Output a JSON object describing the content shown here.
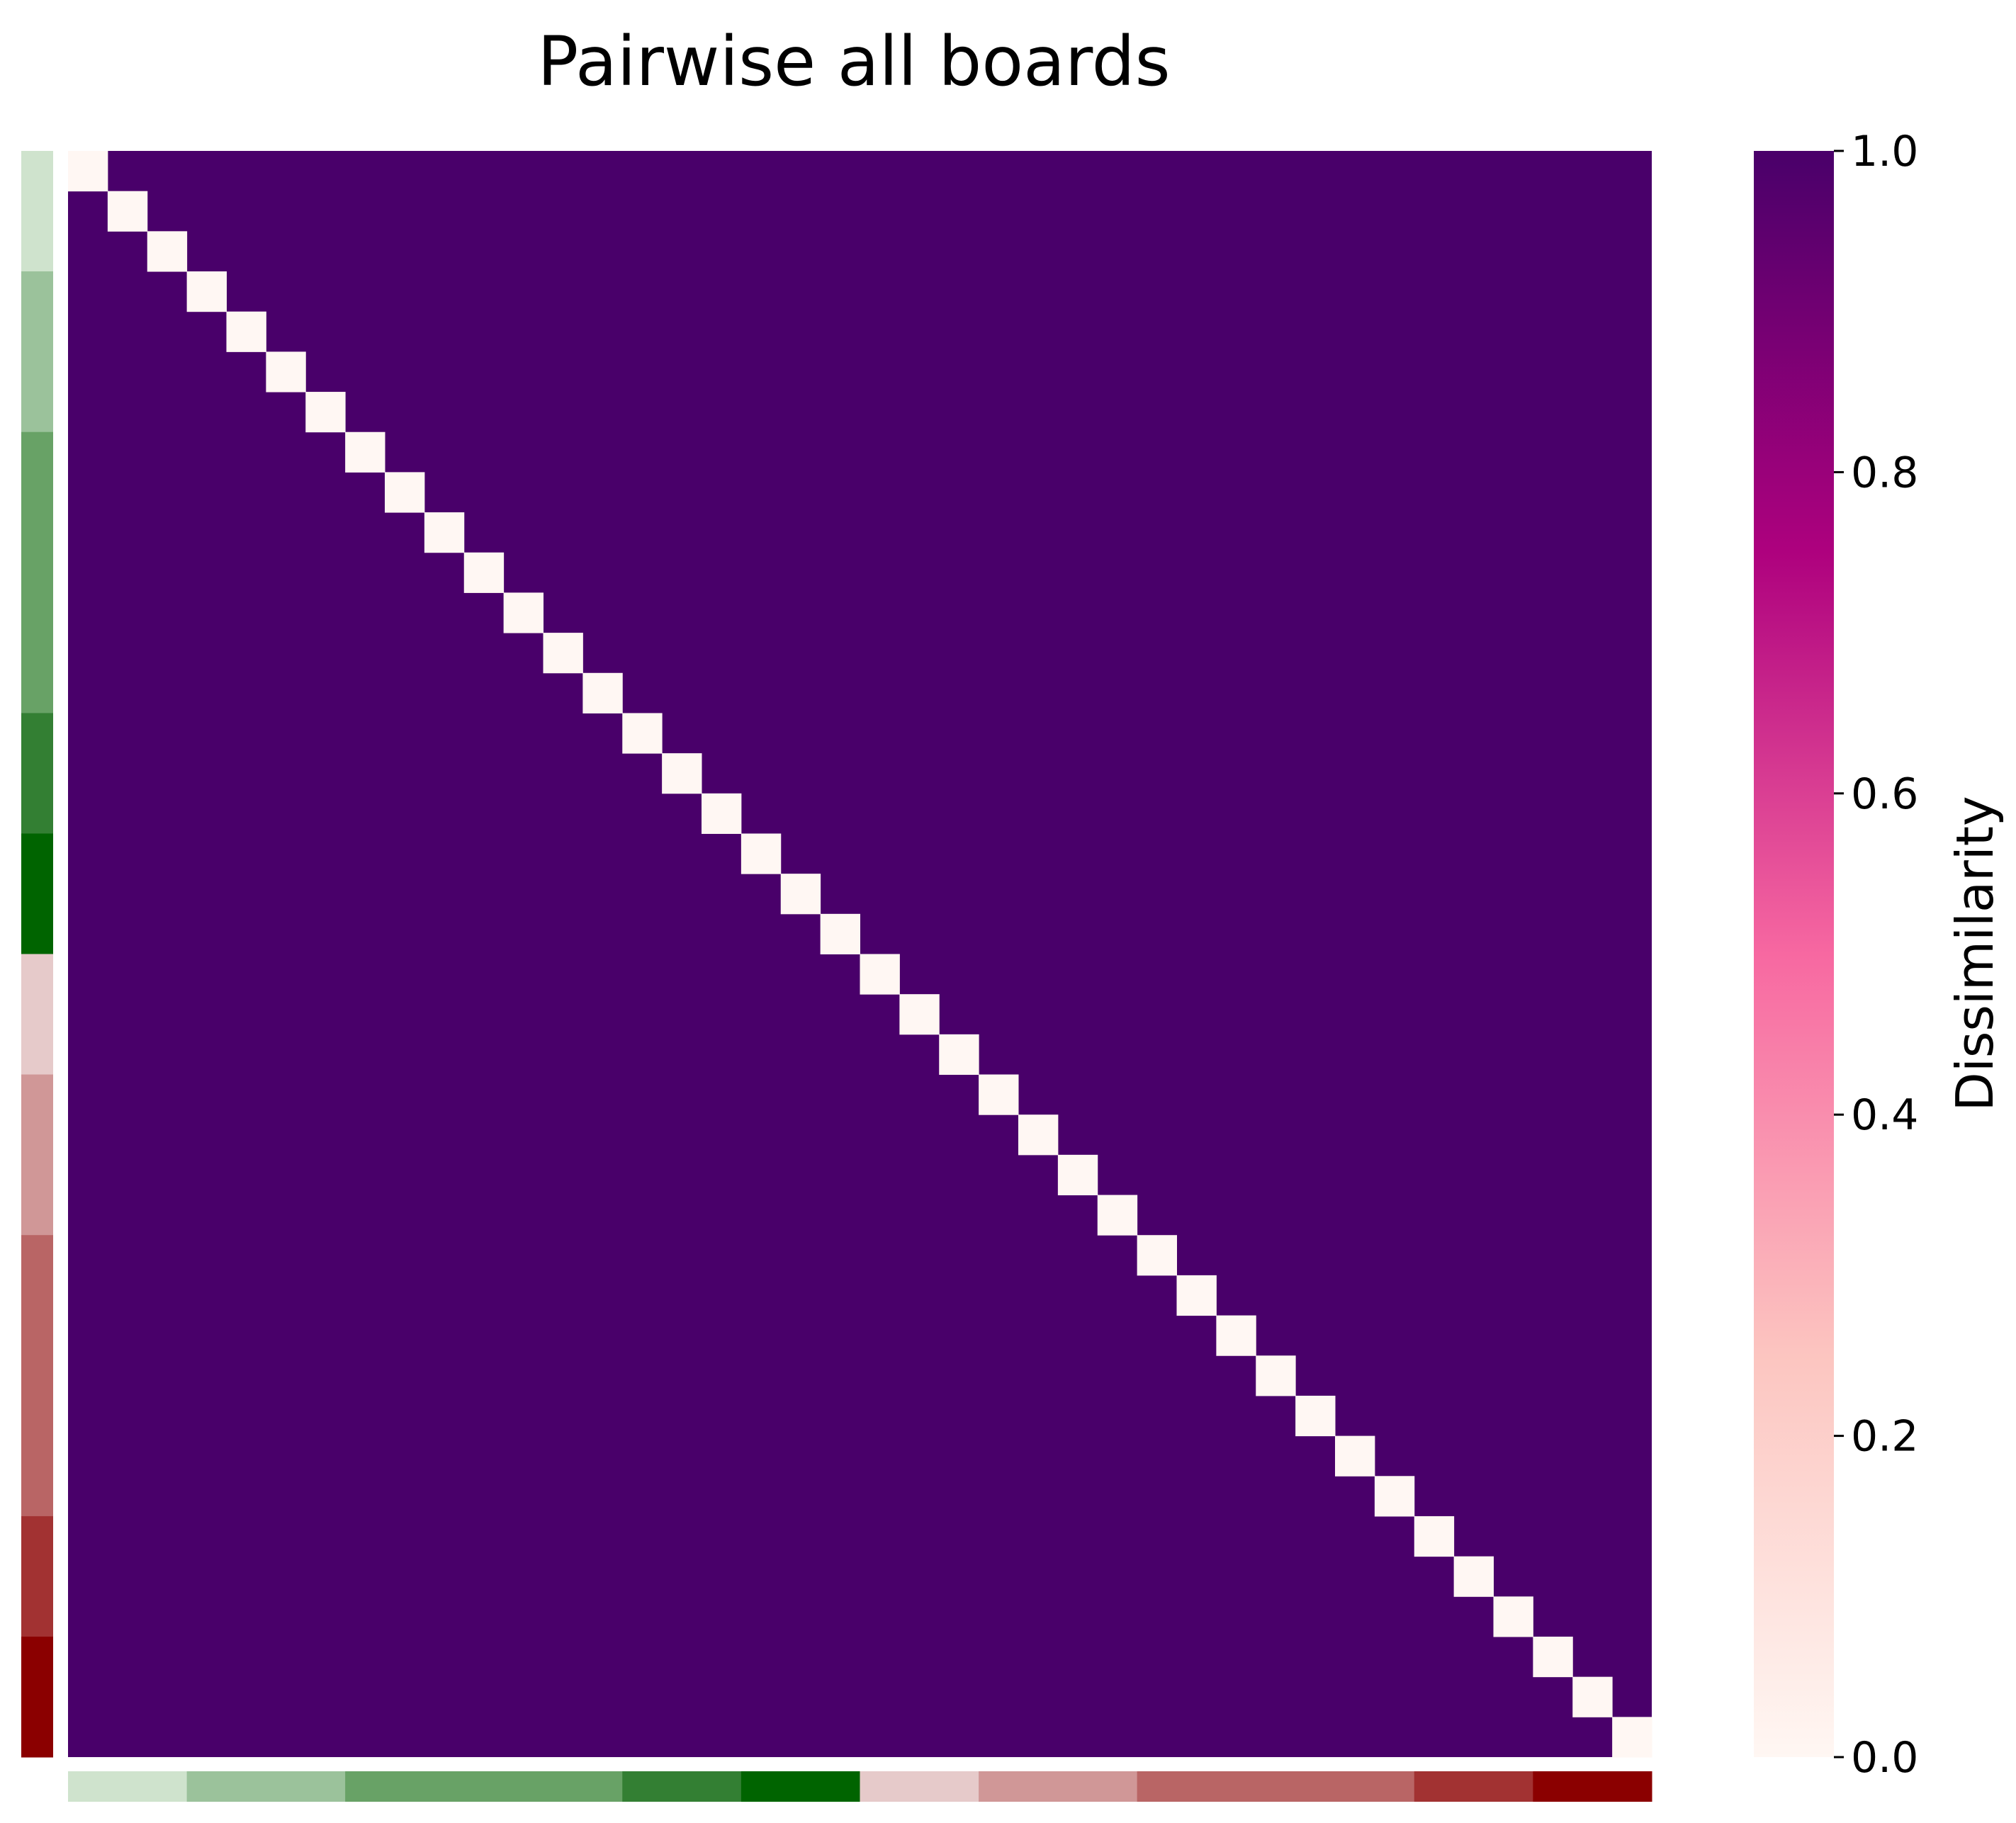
{
  "chart_data": {
    "type": "heatmap",
    "title": "Pairwise all boards",
    "n": 40,
    "diagonal_value": 0.0,
    "off_diagonal_value": 1.0,
    "colorbar": {
      "label": "Dissimilarity",
      "min": 0.0,
      "max": 1.0,
      "ticks": [
        "0.0",
        "0.2",
        "0.4",
        "0.6",
        "0.8",
        "1.0"
      ],
      "colors": [
        "#fff7f3",
        "#fcc5c0",
        "#f768a1",
        "#ae017e",
        "#49006a"
      ]
    },
    "group_color_strip": {
      "groups": [
        {
          "count": 3,
          "color": "#cfe3cd"
        },
        {
          "count": 4,
          "color": "#9bc29b"
        },
        {
          "count": 7,
          "color": "#68a266"
        },
        {
          "count": 3,
          "color": "#337f33"
        },
        {
          "count": 3,
          "color": "#006400"
        },
        {
          "count": 3,
          "color": "#e6caca"
        },
        {
          "count": 4,
          "color": "#d09797"
        },
        {
          "count": 7,
          "color": "#b96565"
        },
        {
          "count": 3,
          "color": "#a23232"
        },
        {
          "count": 3,
          "color": "#8b0000"
        }
      ]
    }
  }
}
